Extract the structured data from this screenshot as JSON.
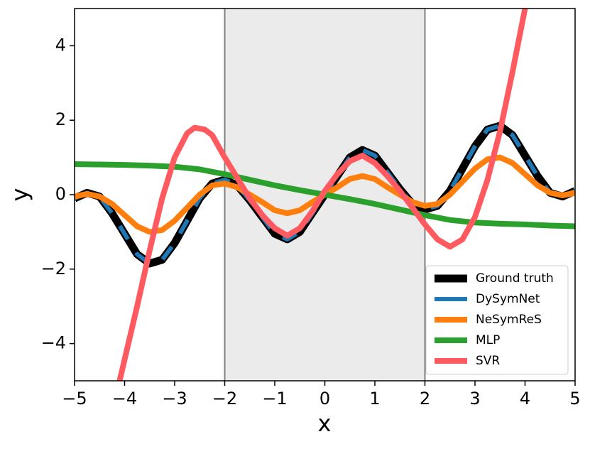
{
  "chart_data": {
    "type": "line",
    "x_label": "x",
    "y_label": "y",
    "xlim": [
      -5,
      5
    ],
    "ylim": [
      -5,
      5
    ],
    "xticks": [
      {
        "value": -5,
        "label": "−5"
      },
      {
        "value": -4,
        "label": "−4"
      },
      {
        "value": -3,
        "label": "−3"
      },
      {
        "value": -2,
        "label": "−2"
      },
      {
        "value": -1,
        "label": "−1"
      },
      0,
      1,
      2,
      3,
      4,
      5
    ],
    "yticks": [
      {
        "value": -4,
        "label": "−4"
      },
      {
        "value": -2,
        "label": "−2"
      },
      0,
      2,
      4
    ],
    "shaded_region": [
      -2,
      2
    ],
    "legend": "lower right",
    "series": [
      {
        "name": "Ground truth",
        "color": "#000000",
        "style": "solid",
        "width": 11,
        "x": [
          -5,
          -4.75,
          -4.5,
          -4.25,
          -4,
          -3.75,
          -3.5,
          -3.25,
          -3,
          -2.75,
          -2.5,
          -2.25,
          -2,
          -1.75,
          -1.5,
          -1.25,
          -1,
          -0.75,
          -0.5,
          -0.25,
          0,
          0.25,
          0.5,
          0.75,
          1,
          1.25,
          1.5,
          1.75,
          2,
          2.25,
          2.5,
          2.75,
          3,
          3.25,
          3.5,
          3.75,
          4,
          4.25,
          4.5,
          4.75,
          5
        ],
        "values": [
          -0.1,
          0.05,
          -0.05,
          -0.5,
          -1.05,
          -1.6,
          -1.85,
          -1.75,
          -1.3,
          -0.7,
          -0.1,
          0.3,
          0.4,
          0.25,
          -0.15,
          -0.6,
          -1.05,
          -1.2,
          -1.0,
          -0.5,
          0,
          0.5,
          1.0,
          1.2,
          1.05,
          0.6,
          0.15,
          -0.25,
          -0.4,
          -0.3,
          0.1,
          0.7,
          1.3,
          1.75,
          1.85,
          1.6,
          1.05,
          0.5,
          0.05,
          -0.05,
          0.1
        ]
      },
      {
        "name": "DySymNet",
        "color": "#1f77b4",
        "style": "dashed",
        "width": 6,
        "x": [
          -5,
          -4.75,
          -4.5,
          -4.25,
          -4,
          -3.75,
          -3.5,
          -3.25,
          -3,
          -2.75,
          -2.5,
          -2.25,
          -2,
          -1.75,
          -1.5,
          -1.25,
          -1,
          -0.75,
          -0.5,
          -0.25,
          0,
          0.25,
          0.5,
          0.75,
          1,
          1.25,
          1.5,
          1.75,
          2,
          2.25,
          2.5,
          2.75,
          3,
          3.25,
          3.5,
          3.75,
          4,
          4.25,
          4.5,
          4.75,
          5
        ],
        "values": [
          -0.1,
          0.05,
          -0.05,
          -0.5,
          -1.05,
          -1.6,
          -1.85,
          -1.75,
          -1.3,
          -0.7,
          -0.1,
          0.3,
          0.4,
          0.25,
          -0.15,
          -0.6,
          -1.05,
          -1.2,
          -1.0,
          -0.5,
          0,
          0.5,
          1.0,
          1.2,
          1.05,
          0.6,
          0.15,
          -0.25,
          -0.4,
          -0.3,
          0.1,
          0.7,
          1.3,
          1.75,
          1.85,
          1.6,
          1.05,
          0.5,
          0.05,
          -0.05,
          0.1
        ]
      },
      {
        "name": "NeSymReS",
        "color": "#ff7f0e",
        "style": "solid",
        "width": 8,
        "x": [
          -5,
          -4.75,
          -4.5,
          -4.25,
          -4,
          -3.75,
          -3.5,
          -3.25,
          -3,
          -2.75,
          -2.5,
          -2.25,
          -2,
          -1.75,
          -1.5,
          -1.25,
          -1,
          -0.75,
          -0.5,
          -0.25,
          0,
          0.25,
          0.5,
          0.75,
          1,
          1.25,
          1.5,
          1.75,
          2,
          2.25,
          2.5,
          2.75,
          3,
          3.25,
          3.5,
          3.75,
          4,
          4.25,
          4.5,
          4.75,
          5
        ],
        "values": [
          -0.05,
          0.02,
          -0.05,
          -0.25,
          -0.55,
          -0.85,
          -1.0,
          -0.95,
          -0.7,
          -0.35,
          0,
          0.25,
          0.3,
          0.2,
          0,
          -0.2,
          -0.42,
          -0.5,
          -0.42,
          -0.2,
          0,
          0.2,
          0.42,
          0.5,
          0.42,
          0.2,
          0,
          -0.2,
          -0.3,
          -0.25,
          0,
          0.35,
          0.7,
          0.95,
          1.0,
          0.85,
          0.55,
          0.25,
          0.05,
          -0.02,
          0.05
        ]
      },
      {
        "name": "MLP",
        "color": "#2ca02c",
        "style": "solid",
        "width": 8,
        "x": [
          -5,
          -4.5,
          -4,
          -3.5,
          -3,
          -2.5,
          -2,
          -1.5,
          -1,
          -0.5,
          0,
          0.5,
          1,
          1.5,
          2,
          2.5,
          3,
          3.5,
          4,
          4.5,
          5
        ],
        "values": [
          0.82,
          0.81,
          0.8,
          0.78,
          0.75,
          0.68,
          0.55,
          0.4,
          0.25,
          0.12,
          0,
          -0.12,
          -0.25,
          -0.4,
          -0.55,
          -0.68,
          -0.75,
          -0.78,
          -0.8,
          -0.83,
          -0.85
        ]
      },
      {
        "name": "SVR",
        "color": "#ff5a5f",
        "style": "solid",
        "width": 8,
        "x": [
          -4.1,
          -3.75,
          -3.5,
          -3.25,
          -3,
          -2.75,
          -2.6,
          -2.4,
          -2.25,
          -2,
          -1.75,
          -1.5,
          -1.25,
          -1,
          -0.75,
          -0.5,
          -0.25,
          0,
          0.25,
          0.5,
          0.75,
          1,
          1.25,
          1.5,
          1.75,
          2,
          2.25,
          2.5,
          2.75,
          3,
          3.25,
          3.5,
          3.75,
          4
        ],
        "values": [
          -5,
          -3.0,
          -1.5,
          -0.1,
          1.0,
          1.65,
          1.8,
          1.75,
          1.6,
          1.0,
          0.45,
          -0.1,
          -0.55,
          -0.9,
          -1.1,
          -0.9,
          -0.45,
          0.1,
          0.55,
          0.9,
          1.05,
          0.85,
          0.5,
          0.1,
          -0.35,
          -0.8,
          -1.2,
          -1.4,
          -1.2,
          -0.6,
          0.4,
          1.7,
          3.3,
          5.0
        ]
      }
    ]
  }
}
